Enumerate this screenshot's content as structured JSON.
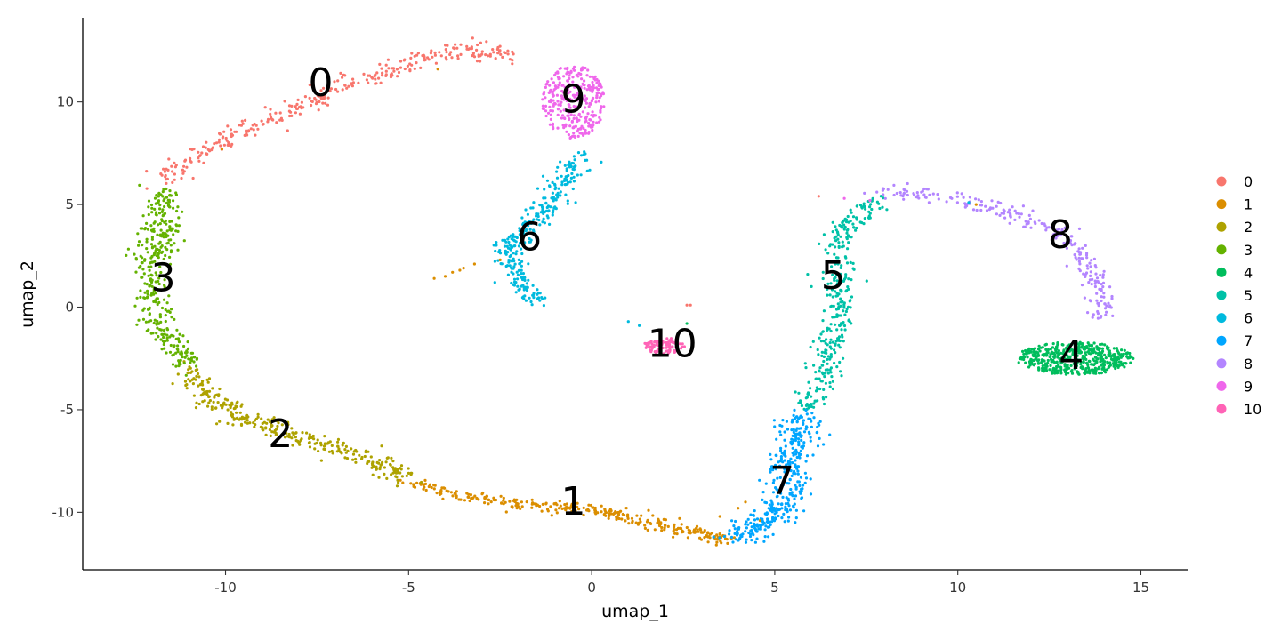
{
  "chart_data": {
    "type": "scatter",
    "title": "",
    "xlabel": "umap_1",
    "ylabel": "umap_2",
    "xlim": [
      -13.9,
      16.3
    ],
    "ylim": [
      -12.8,
      14.1
    ],
    "x_ticks": [
      -10,
      -5,
      0,
      5,
      10,
      15
    ],
    "x_tick_labels": [
      "-10",
      "-5",
      "0",
      "5",
      "10",
      "15"
    ],
    "y_ticks": [
      -10,
      -5,
      0,
      5,
      10
    ],
    "y_tick_labels": [
      "-10",
      "-5",
      "0",
      "5",
      "10"
    ],
    "grid": false,
    "legend_position": "right",
    "series": [
      {
        "name": "0",
        "color": "#F8766D",
        "label_at": [
          -7.4,
          10.8
        ],
        "path": [
          [
            -11.9,
            6.3
          ],
          [
            -11.3,
            6.7
          ],
          [
            -10.5,
            7.8
          ],
          [
            -9.5,
            8.6
          ],
          [
            -8.5,
            9.4
          ],
          [
            -7.5,
            10.1
          ],
          [
            -6.3,
            11.0
          ],
          [
            -5.0,
            11.9
          ],
          [
            -4.0,
            12.4
          ],
          [
            -3.0,
            12.5
          ],
          [
            -2.1,
            12.2
          ]
        ],
        "spread": 0.22,
        "n": 320
      },
      {
        "name": "1",
        "color": "#DB8E00",
        "label_at": [
          -0.5,
          -9.6
        ],
        "path": [
          [
            -5.0,
            -8.6
          ],
          [
            -3.5,
            -9.2
          ],
          [
            -2.0,
            -9.6
          ],
          [
            -0.5,
            -9.8
          ],
          [
            0.5,
            -10.0
          ],
          [
            1.7,
            -10.5
          ],
          [
            2.7,
            -11.0
          ],
          [
            3.7,
            -11.3
          ]
        ],
        "spread": 0.15,
        "n": 320
      },
      {
        "name": "2",
        "color": "#AEA200",
        "label_at": [
          -8.5,
          -6.3
        ],
        "path": [
          [
            -10.9,
            -3.0
          ],
          [
            -10.6,
            -4.3
          ],
          [
            -9.8,
            -5.2
          ],
          [
            -8.6,
            -6.0
          ],
          [
            -7.0,
            -6.9
          ],
          [
            -5.8,
            -7.6
          ],
          [
            -5.0,
            -8.3
          ]
        ],
        "spread": 0.22,
        "n": 320
      },
      {
        "name": "3",
        "color": "#64B200",
        "label_at": [
          -11.7,
          1.3
        ],
        "path": [
          [
            -11.7,
            5.6
          ],
          [
            -11.8,
            3.5
          ],
          [
            -12.0,
            1.5
          ],
          [
            -11.9,
            -0.5
          ],
          [
            -11.5,
            -1.8
          ],
          [
            -11.0,
            -2.8
          ]
        ],
        "spread": 0.25,
        "n": 360
      },
      {
        "name": "4",
        "color": "#00BD5C",
        "label_at": [
          13.1,
          -2.5
        ],
        "ellipse": [
          13.2,
          -2.5,
          1.6,
          0.8
        ],
        "n": 500
      },
      {
        "name": "5",
        "color": "#00C1A7",
        "label_at": [
          6.6,
          1.4
        ],
        "path": [
          [
            5.9,
            -5.0
          ],
          [
            6.3,
            -3.5
          ],
          [
            6.6,
            -1.5
          ],
          [
            6.8,
            0.5
          ],
          [
            6.8,
            1.6
          ],
          [
            6.7,
            3.0
          ],
          [
            6.8,
            3.8
          ],
          [
            7.3,
            4.5
          ],
          [
            7.8,
            5.2
          ]
        ],
        "spread": 0.2,
        "n": 340
      },
      {
        "name": "6",
        "color": "#00BADE",
        "label_at": [
          -1.7,
          3.3
        ],
        "path": [
          [
            -1.5,
            0.3
          ],
          [
            -1.9,
            1.0
          ],
          [
            -2.2,
            2.0
          ],
          [
            -2.3,
            3.0
          ],
          [
            -1.7,
            4.0
          ],
          [
            -1.1,
            5.0
          ],
          [
            -0.7,
            6.2
          ],
          [
            -0.3,
            7.5
          ]
        ],
        "spread": 0.2,
        "n": 300
      },
      {
        "name": "7",
        "color": "#00A6FF",
        "label_at": [
          5.2,
          -8.6
        ],
        "path": [
          [
            3.7,
            -11.2
          ],
          [
            4.5,
            -10.8
          ],
          [
            5.1,
            -10.0
          ],
          [
            5.4,
            -8.5
          ],
          [
            5.3,
            -7.5
          ],
          [
            5.6,
            -6.4
          ],
          [
            5.8,
            -5.3
          ]
        ],
        "spread": 0.28,
        "n": 380
      },
      {
        "name": "8",
        "color": "#B385FF",
        "label_at": [
          12.8,
          3.4
        ],
        "path": [
          [
            7.9,
            5.5
          ],
          [
            9.0,
            5.6
          ],
          [
            10.5,
            5.0
          ],
          [
            11.8,
            4.3
          ],
          [
            12.6,
            3.8
          ],
          [
            13.2,
            3.0
          ],
          [
            13.6,
            1.5
          ],
          [
            13.9,
            0.5
          ],
          [
            14.0,
            -0.5
          ]
        ],
        "spread": 0.18,
        "n": 240
      },
      {
        "name": "9",
        "color": "#EF67EB",
        "label_at": [
          -0.5,
          10.0
        ],
        "ellipse": [
          -0.5,
          10.0,
          0.85,
          1.8
        ],
        "n": 300
      },
      {
        "name": "10",
        "color": "#FF63B6",
        "label_at": [
          2.2,
          -1.9
        ],
        "ellipse": [
          2.0,
          -1.9,
          0.6,
          0.4
        ],
        "n": 90
      }
    ],
    "stray_points": [
      {
        "color": "#DB8E00",
        "points": [
          [
            -4.3,
            1.4
          ],
          [
            -3.8,
            1.7
          ],
          [
            -3.5,
            1.9
          ],
          [
            -3.2,
            2.1
          ],
          [
            -4.0,
            1.5
          ],
          [
            -3.6,
            1.8
          ],
          [
            -2.5,
            2.3
          ],
          [
            -4.2,
            11.6
          ],
          [
            -10.1,
            7.7
          ],
          [
            4.0,
            -9.8
          ],
          [
            4.2,
            -9.5
          ],
          [
            3.5,
            -10.2
          ],
          [
            2.4,
            -10.3
          ],
          [
            4.6,
            -10.4
          ],
          [
            10.5,
            5.0
          ]
        ]
      },
      {
        "color": "#F8766D",
        "points": [
          [
            2.6,
            0.1
          ],
          [
            2.7,
            0.1
          ],
          [
            6.2,
            5.4
          ]
        ]
      },
      {
        "color": "#00BADE",
        "points": [
          [
            1.0,
            -0.7
          ],
          [
            1.3,
            -0.9
          ],
          [
            10.3,
            5.1
          ]
        ]
      },
      {
        "color": "#00BD5C",
        "points": [
          [
            2.6,
            -0.8
          ]
        ]
      },
      {
        "color": "#EF67EB",
        "points": [
          [
            6.9,
            5.3
          ],
          [
            7.6,
            5.2
          ]
        ]
      },
      {
        "color": "#00C1A7",
        "points": [
          [
            5.9,
            1.6
          ],
          [
            6.0,
            1.0
          ]
        ]
      }
    ]
  }
}
